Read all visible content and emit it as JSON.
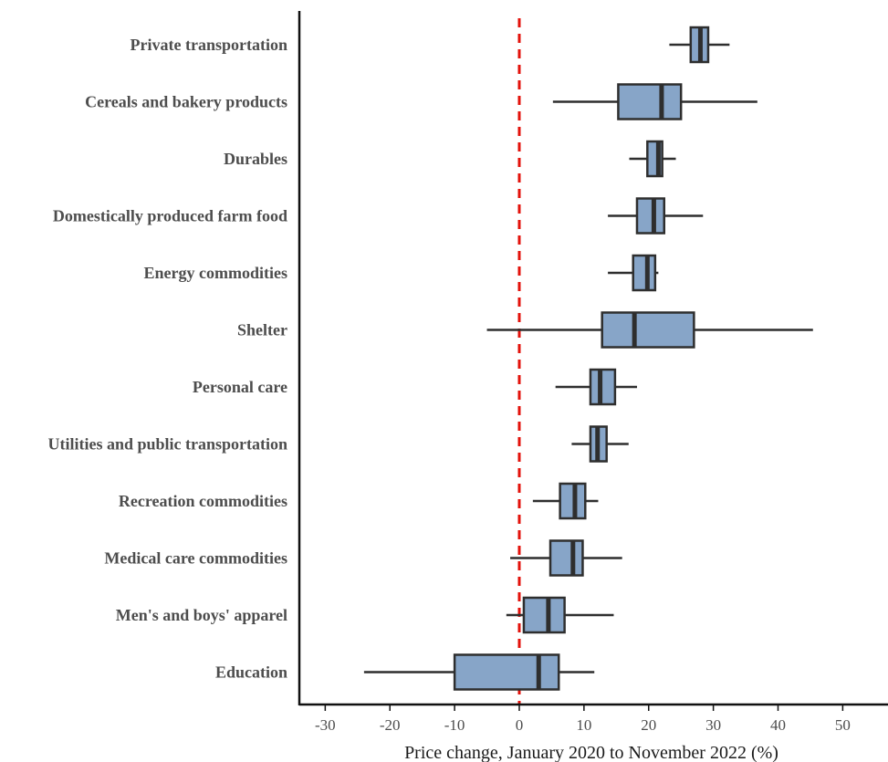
{
  "chart_data": {
    "type": "boxplot",
    "orientation": "horizontal",
    "xlabel": "Price change,  January 2020 to November 2022 (%)",
    "xlim": [
      -34,
      57
    ],
    "xticks": [
      -30,
      -20,
      -10,
      0,
      10,
      20,
      30,
      40,
      50
    ],
    "reference_line": {
      "x": 0,
      "style": "dashed",
      "color": "#e3120b"
    },
    "box_color": "#87a5c8",
    "outline_color": "#2e2e2e",
    "categories": [
      {
        "label": "Private transportation",
        "whisker_low": 23.2,
        "q1": 26.5,
        "median": 28.0,
        "q3": 29.2,
        "whisker_high": 32.5
      },
      {
        "label": "Cereals and bakery products",
        "whisker_low": 5.2,
        "q1": 15.3,
        "median": 22.0,
        "q3": 25.0,
        "whisker_high": 36.8
      },
      {
        "label": "Durables",
        "whisker_low": 17.0,
        "q1": 19.8,
        "median": 21.5,
        "q3": 22.1,
        "whisker_high": 24.2
      },
      {
        "label": "Domestically produced farm food",
        "whisker_low": 13.7,
        "q1": 18.2,
        "median": 20.8,
        "q3": 22.4,
        "whisker_high": 28.4
      },
      {
        "label": "Energy commodities",
        "whisker_low": 13.7,
        "q1": 17.6,
        "median": 19.8,
        "q3": 21.0,
        "whisker_high": 21.5
      },
      {
        "label": "Shelter",
        "whisker_low": -5.0,
        "q1": 12.8,
        "median": 17.8,
        "q3": 27.0,
        "whisker_high": 45.4
      },
      {
        "label": "Personal care",
        "whisker_low": 5.6,
        "q1": 11.0,
        "median": 12.5,
        "q3": 14.8,
        "whisker_high": 18.2
      },
      {
        "label": "Utilities and public transportation",
        "whisker_low": 8.1,
        "q1": 11.0,
        "median": 12.1,
        "q3": 13.5,
        "whisker_high": 16.9
      },
      {
        "label": "Recreation commodities",
        "whisker_low": 2.1,
        "q1": 6.3,
        "median": 8.6,
        "q3": 10.2,
        "whisker_high": 12.2
      },
      {
        "label": "Medical care commodities",
        "whisker_low": -1.4,
        "q1": 4.8,
        "median": 8.3,
        "q3": 9.8,
        "whisker_high": 15.9
      },
      {
        "label": "Men's and boys' apparel",
        "whisker_low": -2.0,
        "q1": 0.7,
        "median": 4.5,
        "q3": 7.0,
        "whisker_high": 14.6
      },
      {
        "label": "Education",
        "whisker_low": -24.0,
        "q1": -10.0,
        "median": 3.0,
        "q3": 6.1,
        "whisker_high": 11.6
      }
    ]
  }
}
